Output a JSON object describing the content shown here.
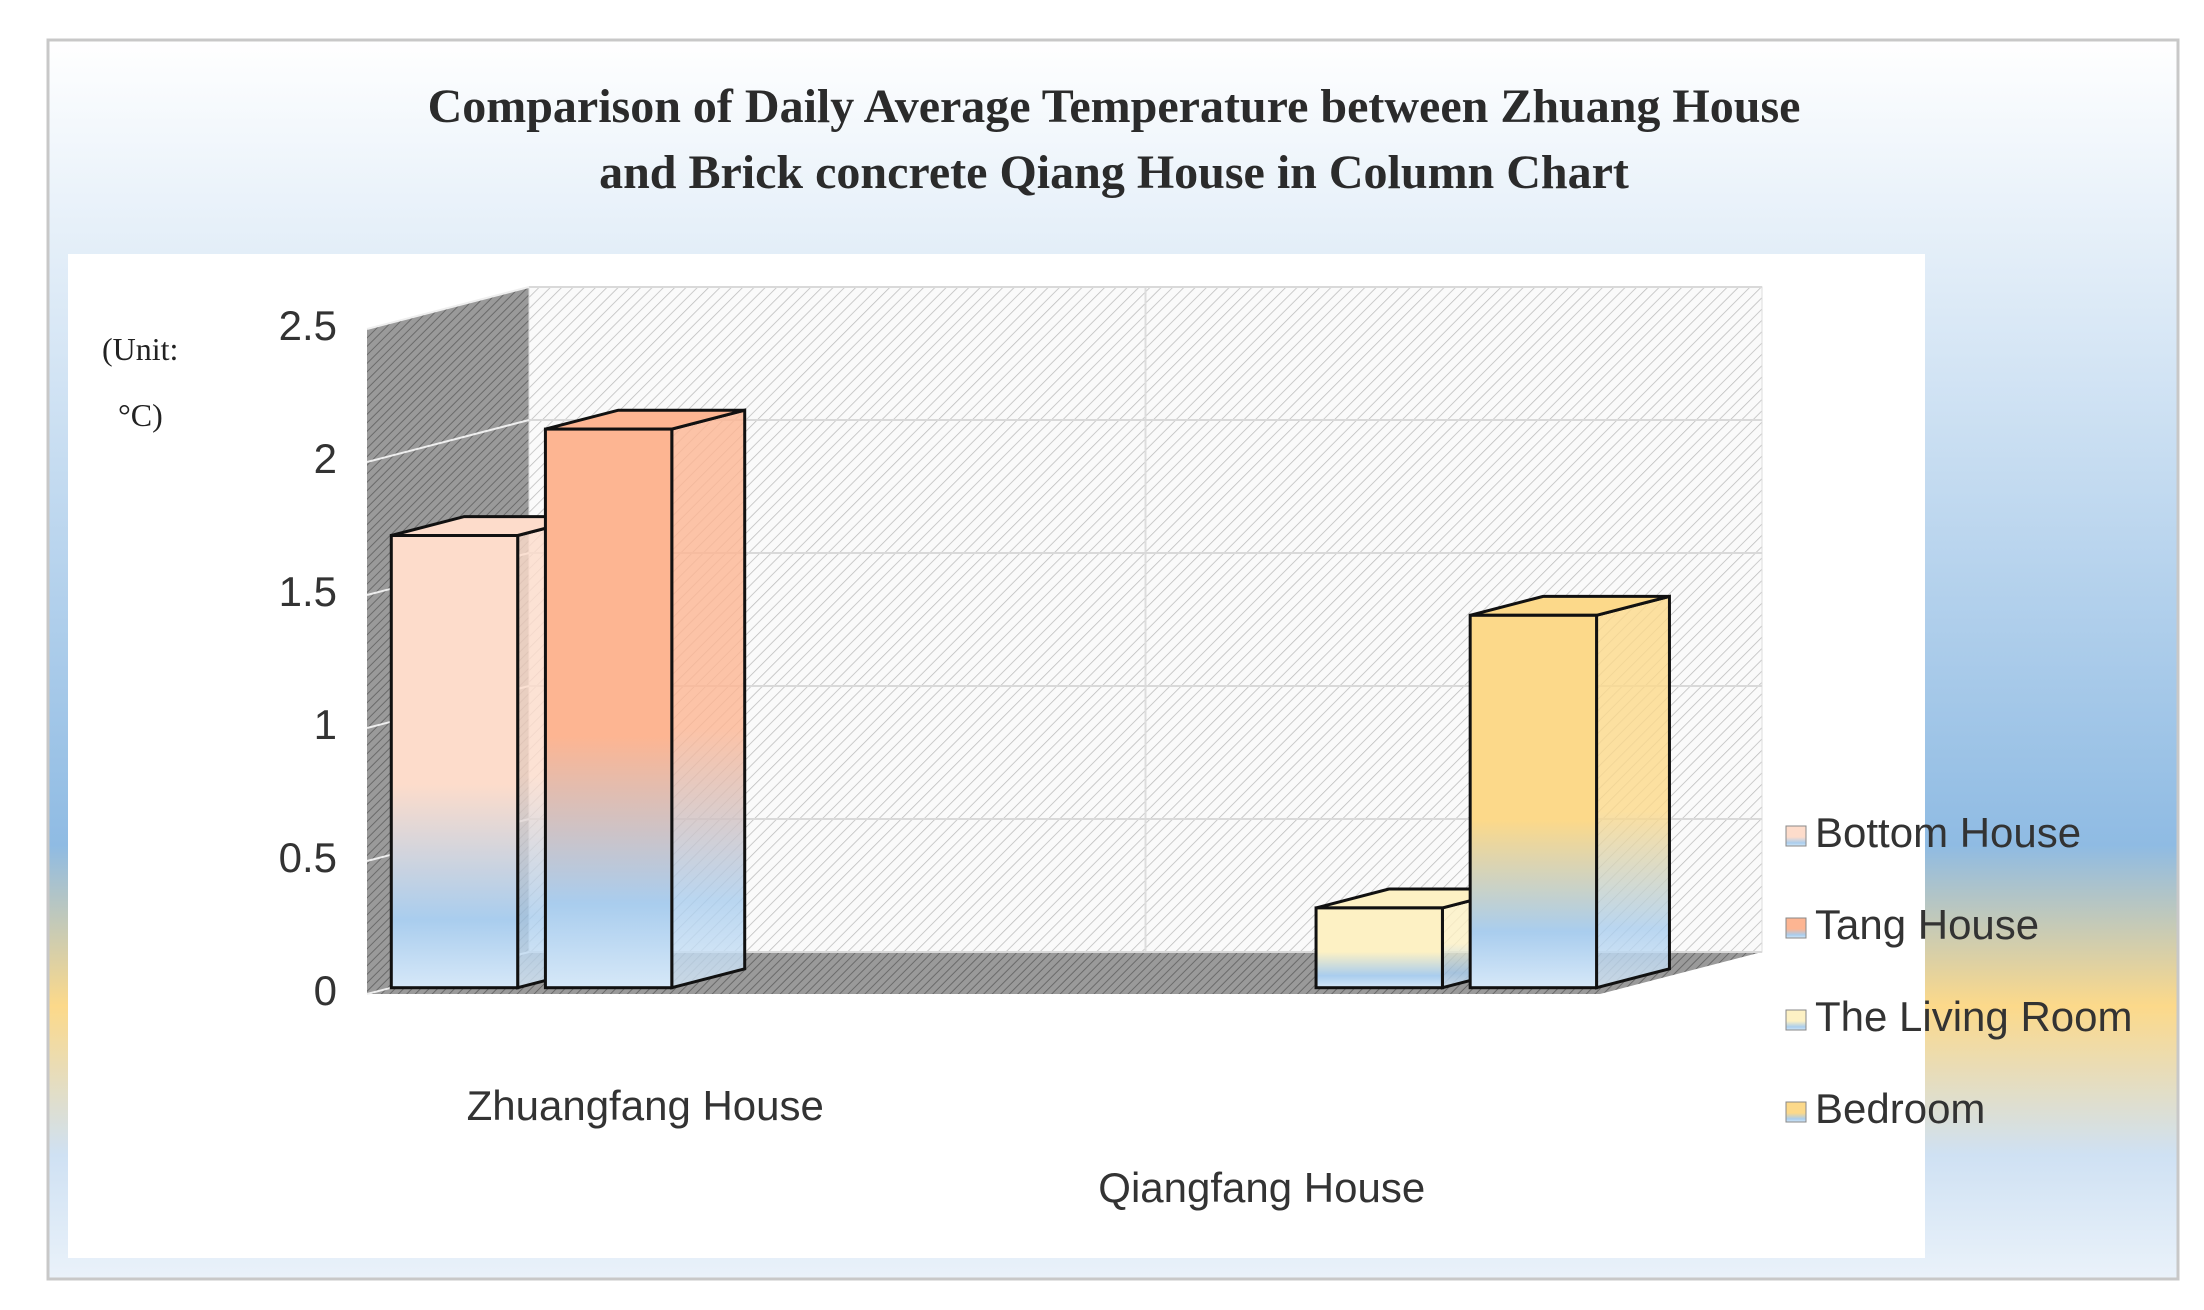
{
  "chart_data": {
    "type": "bar3d",
    "title_lines": [
      "Comparison of Daily Average Temperature between Zhuang House",
      "and Brick concrete Qiang House in  Column Chart"
    ],
    "y_label_lines": [
      "(Unit:",
      "°C)"
    ],
    "categories": [
      "Zhuangfang House",
      "Qiangfang House"
    ],
    "series": [
      {
        "name": "Bottom House",
        "color": "#fddccb",
        "values": [
          1.7,
          null
        ]
      },
      {
        "name": "Tang House",
        "color": "#fdb592",
        "values": [
          2.1,
          null
        ]
      },
      {
        "name": "The Living Room",
        "color": "#fdf1c4",
        "values": [
          null,
          0.3
        ]
      },
      {
        "name": "Bedroom",
        "color": "#fcd98a",
        "values": [
          null,
          1.4
        ]
      }
    ],
    "ylim": [
      0,
      2.5
    ],
    "yticks": [
      0,
      0.5,
      1,
      1.5,
      2,
      2.5
    ],
    "grid": true,
    "legend": "right"
  }
}
